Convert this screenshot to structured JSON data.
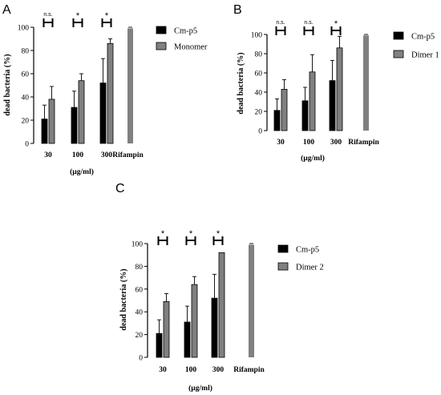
{
  "colors": {
    "control": "#000000",
    "treatment": "#808080",
    "reference": "#808080",
    "axis": "#000000"
  },
  "chart_data": [
    {
      "panel": "A",
      "type": "bar",
      "title": "",
      "ylabel": "dead bacteria (%)",
      "xlabel": "(µg/ml)",
      "ylim": [
        0,
        100
      ],
      "yticks": [
        0,
        20,
        40,
        60,
        80,
        100
      ],
      "categories": [
        "30",
        "100",
        "300",
        "Rifampin"
      ],
      "series": [
        {
          "name": "Cm-p5",
          "values": [
            21,
            31,
            52,
            null
          ],
          "errors": [
            12,
            14,
            21,
            null
          ]
        },
        {
          "name": "Monomer",
          "values": [
            38,
            54,
            86,
            null
          ],
          "errors": [
            11,
            6,
            4,
            null
          ]
        }
      ],
      "reference": {
        "category": "Rifampin",
        "value": 99,
        "error": 1
      },
      "significance": [
        "n.s.",
        "*",
        "*"
      ],
      "legend": "right"
    },
    {
      "panel": "B",
      "type": "bar",
      "title": "",
      "ylabel": "dead bacteria (%)",
      "xlabel": "(µg/ml)",
      "ylim": [
        0,
        100
      ],
      "yticks": [
        0,
        20,
        40,
        60,
        80,
        100
      ],
      "categories": [
        "30",
        "100",
        "300",
        "Rifampin"
      ],
      "series": [
        {
          "name": "Cm-p5",
          "values": [
            21,
            31,
            52,
            null
          ],
          "errors": [
            12,
            14,
            21,
            null
          ]
        },
        {
          "name": "Dimer 1",
          "values": [
            43,
            61,
            86,
            null
          ],
          "errors": [
            10,
            18,
            12,
            null
          ]
        }
      ],
      "reference": {
        "category": "Rifampin",
        "value": 99,
        "error": 1
      },
      "significance": [
        "n.s.",
        "n.s.",
        "*"
      ],
      "legend": "right"
    },
    {
      "panel": "C",
      "type": "bar",
      "title": "",
      "ylabel": "dead bacteria (%)",
      "xlabel": "(µg/ml)",
      "ylim": [
        0,
        100
      ],
      "yticks": [
        0,
        20,
        40,
        60,
        80,
        100
      ],
      "categories": [
        "30",
        "100",
        "300",
        "Rifampin"
      ],
      "series": [
        {
          "name": "Cm-p5",
          "values": [
            21,
            31,
            52,
            null
          ],
          "errors": [
            12,
            14,
            21,
            null
          ]
        },
        {
          "name": "Dimer 2",
          "values": [
            49,
            64,
            92,
            null
          ],
          "errors": [
            7,
            7,
            0,
            null
          ]
        }
      ],
      "reference": {
        "category": "Rifampin",
        "value": 99,
        "error": 1
      },
      "significance": [
        "*",
        "*",
        "*"
      ],
      "legend": "right"
    }
  ]
}
